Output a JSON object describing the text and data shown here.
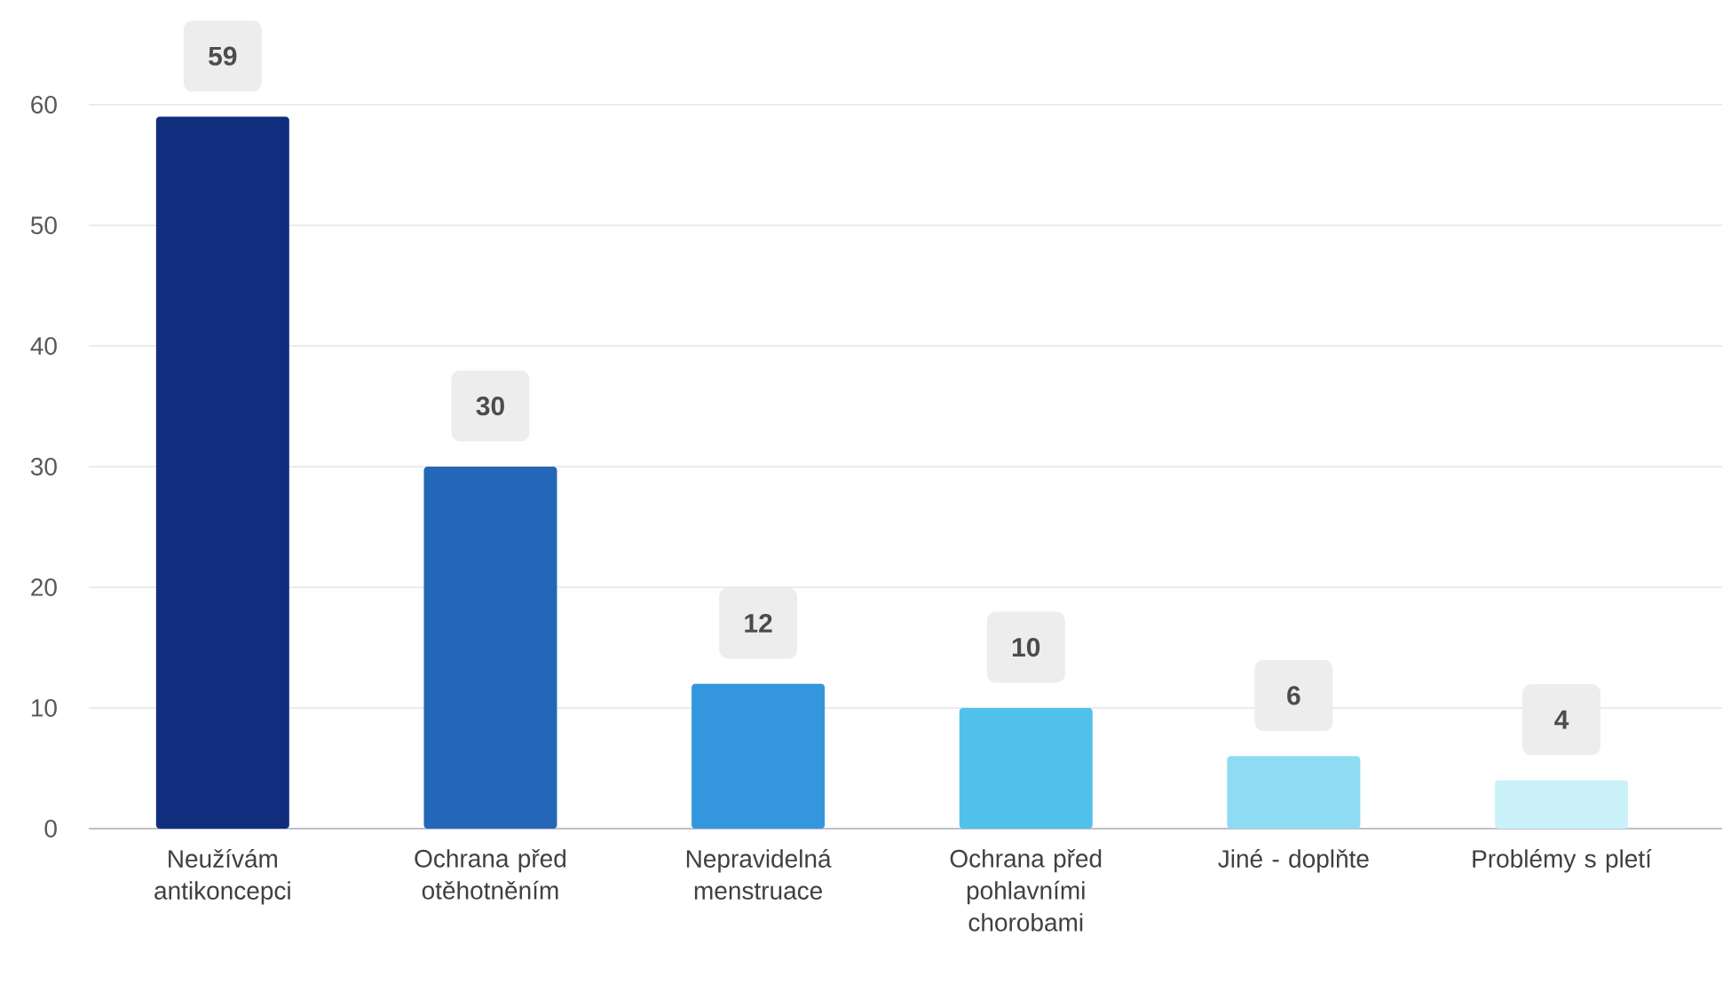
{
  "chart_data": {
    "type": "bar",
    "categories": [
      "Neužívám antikoncepci",
      "Ochrana před otěhotněním",
      "Nepravidelná menstruace",
      "Ochrana před pohlavními chorobami",
      "Jiné - doplňte",
      "Problémy s pletí"
    ],
    "values": [
      59,
      30,
      12,
      10,
      6,
      4
    ],
    "colors": [
      "#112e7e",
      "#2467b8",
      "#3497dd",
      "#50c1eb",
      "#8edcf3",
      "#cbf1f9"
    ],
    "ylim": [
      0,
      60
    ],
    "yticks": [
      0,
      10,
      20,
      30,
      40,
      50,
      60
    ],
    "grid": "y",
    "data_labels": true
  }
}
